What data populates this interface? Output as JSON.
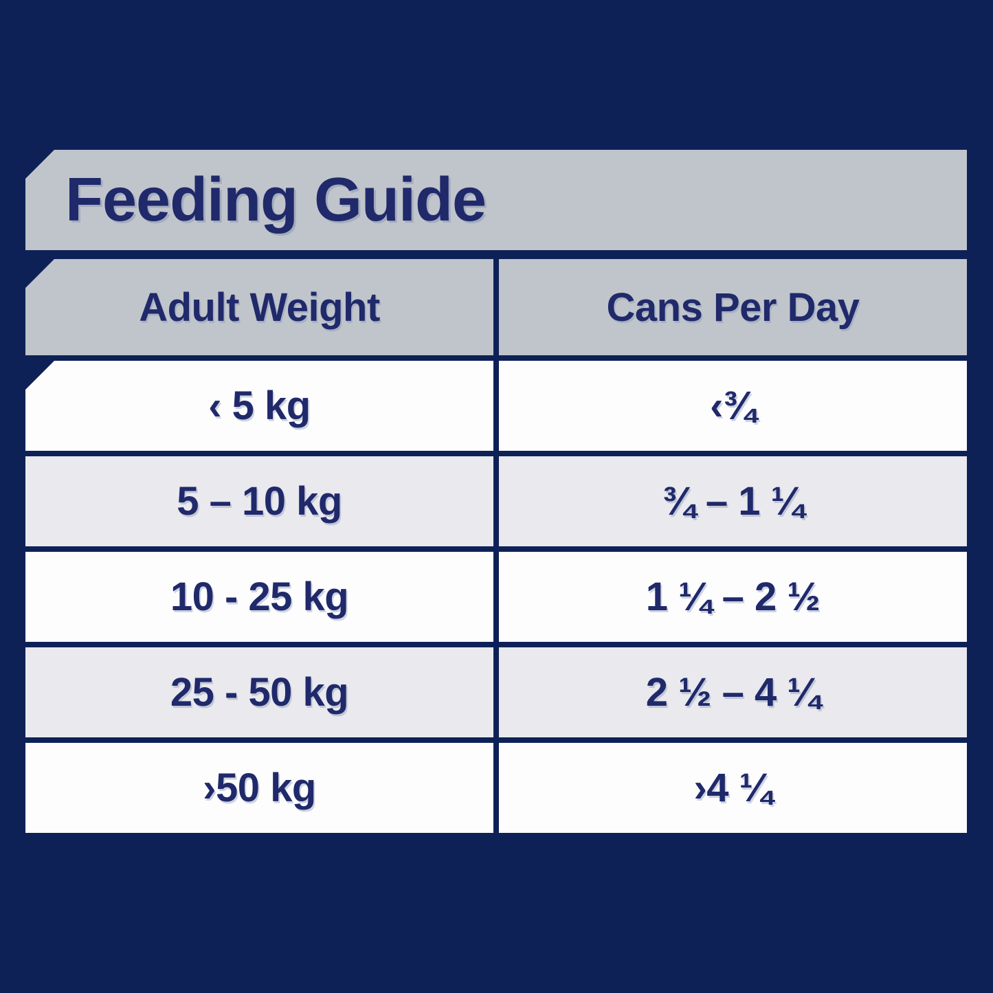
{
  "colors": {
    "navy": "#0e2157",
    "ink": "#20296a",
    "banner-gray": "#c0c5cc",
    "row-gray": "#e9e9ee",
    "row-white": "#fdfdfe"
  },
  "chart_data": {
    "type": "table",
    "title": "Feeding Guide",
    "columns": [
      "Adult Weight",
      "Cans Per Day"
    ],
    "rows": [
      [
        "‹ 5 kg",
        "‹¾"
      ],
      [
        "5 – 10 kg",
        "¾ – 1 ¼"
      ],
      [
        "10 - 25 kg",
        "1 ¼ – 2 ½"
      ],
      [
        "25 - 50 kg",
        "2 ½ – 4 ¼"
      ],
      [
        "›50 kg",
        "›4 ¼"
      ]
    ]
  }
}
